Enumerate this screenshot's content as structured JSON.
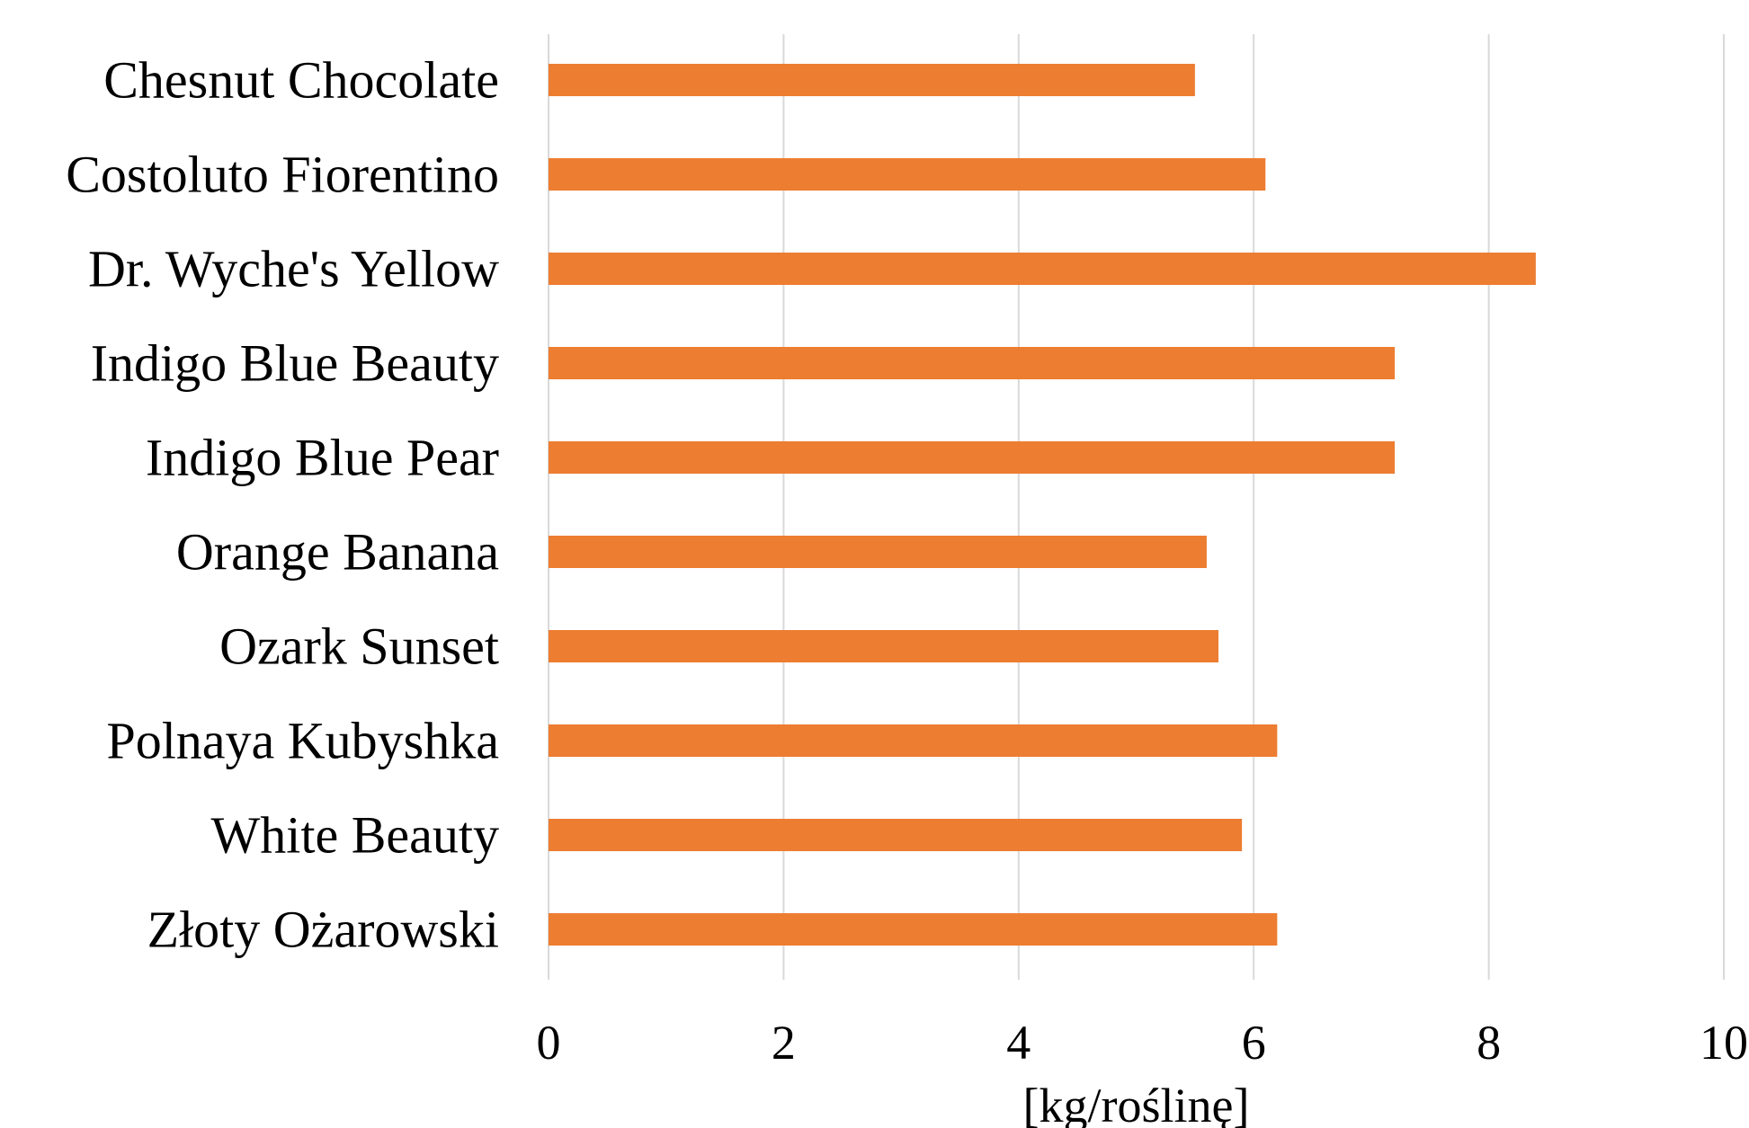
{
  "chart_data": {
    "type": "bar",
    "orientation": "horizontal",
    "categories": [
      "Chesnut Chocolate",
      "Costoluto Fiorentino",
      "Dr. Wyche's Yellow",
      "Indigo Blue Beauty",
      "Indigo Blue Pear",
      "Orange Banana",
      "Ozark Sunset",
      "Polnaya Kubyshka",
      "White Beauty",
      "Złoty Ożarowski"
    ],
    "values": [
      5.5,
      6.1,
      8.4,
      7.2,
      7.2,
      5.6,
      5.7,
      6.2,
      5.9,
      6.2
    ],
    "xlabel": "[kg/roślinę]",
    "ylabel": "",
    "title": "",
    "xlim": [
      0,
      10
    ],
    "xticks": [
      0,
      2,
      4,
      6,
      8,
      10
    ],
    "xtick_labels": [
      "0",
      "2",
      "4",
      "6",
      "8",
      "10"
    ],
    "grid": "vertical",
    "legend": "none",
    "bar_color": "#ED7D31",
    "grid_color": "#D9D9D9"
  }
}
